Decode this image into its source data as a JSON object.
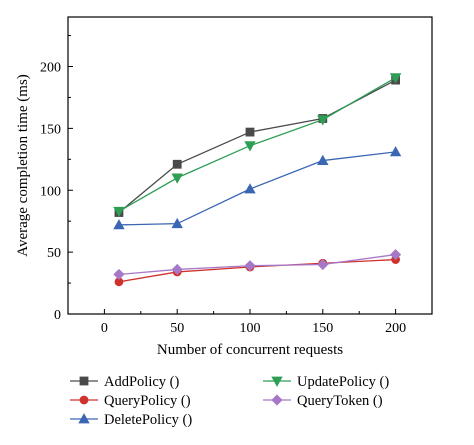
{
  "chart_data": {
    "type": "line",
    "xlabel": "Number of concurrent requests",
    "ylabel": "Average completion time (ms)",
    "xlim": [
      -25,
      225
    ],
    "ylim": [
      0,
      240
    ],
    "xticks": [
      0,
      50,
      100,
      150,
      200
    ],
    "yticks": [
      0,
      50,
      100,
      150,
      200
    ],
    "x": [
      10,
      50,
      100,
      150,
      200
    ],
    "grid": false,
    "legend_position": "bottom",
    "series": [
      {
        "name": "AddPolicy ()",
        "values": [
          82,
          121,
          147,
          158,
          189
        ],
        "color": "#4a4a4a",
        "marker": "square"
      },
      {
        "name": "QueryPolicy ()",
        "values": [
          26,
          34,
          38,
          41,
          44
        ],
        "color": "#d0312d",
        "marker": "circle"
      },
      {
        "name": "DeletePolicy ()",
        "values": [
          72,
          73,
          101,
          124,
          131
        ],
        "color": "#3b66b3",
        "marker": "triangle-up"
      },
      {
        "name": "UpdatePolicy ()",
        "values": [
          83,
          110,
          136,
          157,
          191
        ],
        "color": "#2e9e55",
        "marker": "triangle-down"
      },
      {
        "name": "QueryToken ()",
        "values": [
          32,
          36,
          39,
          40,
          48
        ],
        "color": "#a678c7",
        "marker": "diamond"
      }
    ]
  }
}
